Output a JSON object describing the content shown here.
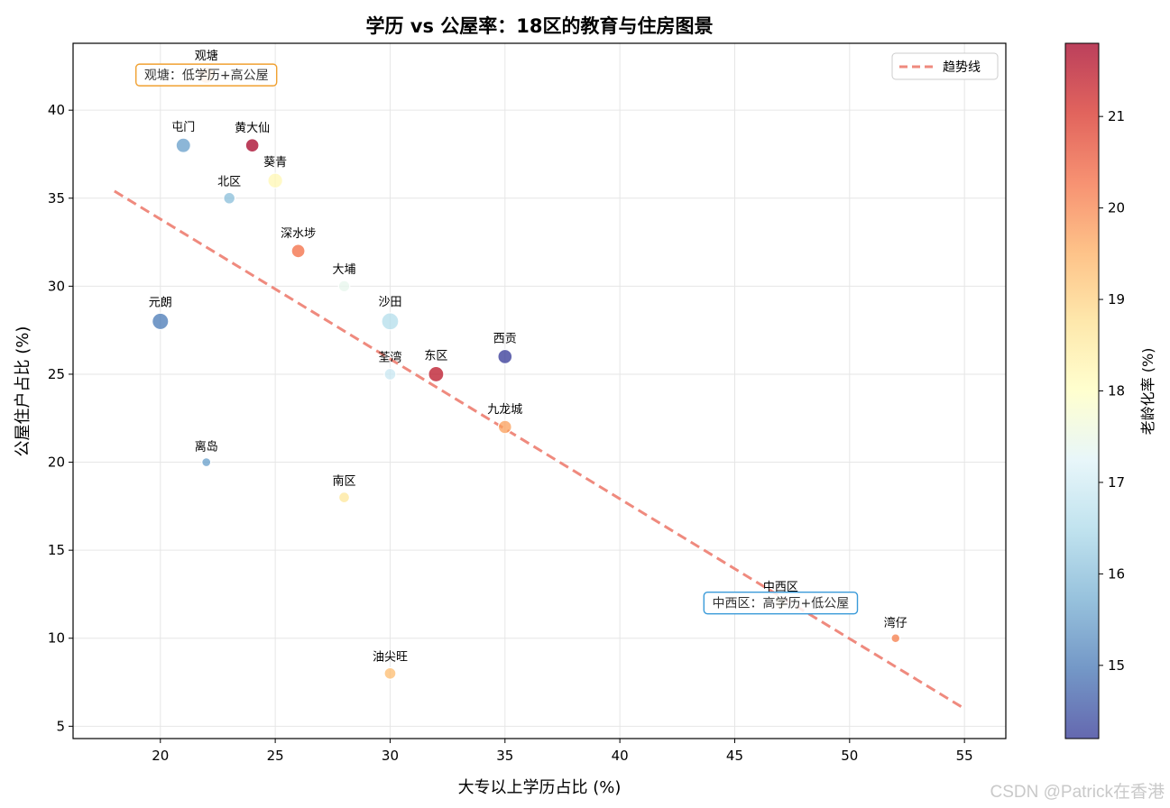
{
  "chart_data": {
    "type": "scatter",
    "title": "学历 vs 公屋率：18区的教育与住房图景",
    "xlabel": "大专以上学历占比 (%)",
    "ylabel": "公屋住户占比 (%)",
    "xlim": [
      16.2,
      56.8
    ],
    "ylim": [
      4.3,
      43.8
    ],
    "xticks": [
      20,
      25,
      30,
      35,
      40,
      45,
      50,
      55
    ],
    "yticks": [
      5,
      10,
      15,
      20,
      25,
      30,
      35,
      40
    ],
    "grid": true,
    "legend": {
      "placement": "top-right",
      "entries": [
        {
          "label": "趋势线",
          "style": "dashed",
          "color": "#ef8a7e"
        }
      ]
    },
    "trend_line": {
      "x": [
        18,
        55
      ],
      "y": [
        35.4,
        6.0
      ]
    },
    "colorbar": {
      "label": "老龄化率 (%)",
      "min": 14.2,
      "max": 21.8,
      "ticks": [
        15,
        16,
        17,
        18,
        19,
        20,
        21
      ],
      "colormap": "RdYlBu_r",
      "stops": [
        "#313695",
        "#4575b4",
        "#74add1",
        "#abd9e9",
        "#e0f3f8",
        "#ffffbf",
        "#fee090",
        "#fdae61",
        "#f46d43",
        "#d73027",
        "#a50026"
      ]
    },
    "points": [
      {
        "name": "观塘",
        "x": 22,
        "y": 42,
        "aging": 19.6,
        "pop": 650
      },
      {
        "name": "屯门",
        "x": 21,
        "y": 38,
        "aging": 15.5,
        "pop": 500
      },
      {
        "name": "黄大仙",
        "x": 24,
        "y": 38,
        "aging": 21.8,
        "pop": 420
      },
      {
        "name": "葵青",
        "x": 25,
        "y": 36,
        "aging": 18.2,
        "pop": 520
      },
      {
        "name": "北区",
        "x": 23,
        "y": 35,
        "aging": 16.0,
        "pop": 310
      },
      {
        "name": "深水埗",
        "x": 26,
        "y": 32,
        "aging": 20.3,
        "pop": 430
      },
      {
        "name": "大埔",
        "x": 28,
        "y": 30,
        "aging": 17.4,
        "pop": 300
      },
      {
        "name": "元朗",
        "x": 20,
        "y": 28,
        "aging": 15.0,
        "pop": 640
      },
      {
        "name": "沙田",
        "x": 30,
        "y": 28,
        "aging": 16.6,
        "pop": 690
      },
      {
        "name": "西贡",
        "x": 35,
        "y": 26,
        "aging": 14.2,
        "pop": 480
      },
      {
        "name": "荃湾",
        "x": 30,
        "y": 25,
        "aging": 16.9,
        "pop": 320
      },
      {
        "name": "东区",
        "x": 32,
        "y": 25,
        "aging": 21.5,
        "pop": 560
      },
      {
        "name": "九龙城",
        "x": 35,
        "y": 22,
        "aging": 19.7,
        "pop": 420
      },
      {
        "name": "离岛",
        "x": 22,
        "y": 20,
        "aging": 15.5,
        "pop": 190
      },
      {
        "name": "南区",
        "x": 28,
        "y": 18,
        "aging": 18.6,
        "pop": 270
      },
      {
        "name": "中西区",
        "x": 47,
        "y": 12,
        "aging": 18.4,
        "pop": 240
      },
      {
        "name": "湾仔",
        "x": 52,
        "y": 10,
        "aging": 20.1,
        "pop": 180
      },
      {
        "name": "油尖旺",
        "x": 30,
        "y": 8,
        "aging": 19.3,
        "pop": 320
      }
    ],
    "annotations": [
      {
        "text": "观塘：低学历+高公屋",
        "x": 22,
        "y": 42,
        "edge_color": "#f0a030"
      },
      {
        "text": "中西区：高学历+低公屋",
        "x": 47,
        "y": 12,
        "edge_color": "#3a9ad9"
      }
    ]
  },
  "watermark": "CSDN @Patrick在香港"
}
